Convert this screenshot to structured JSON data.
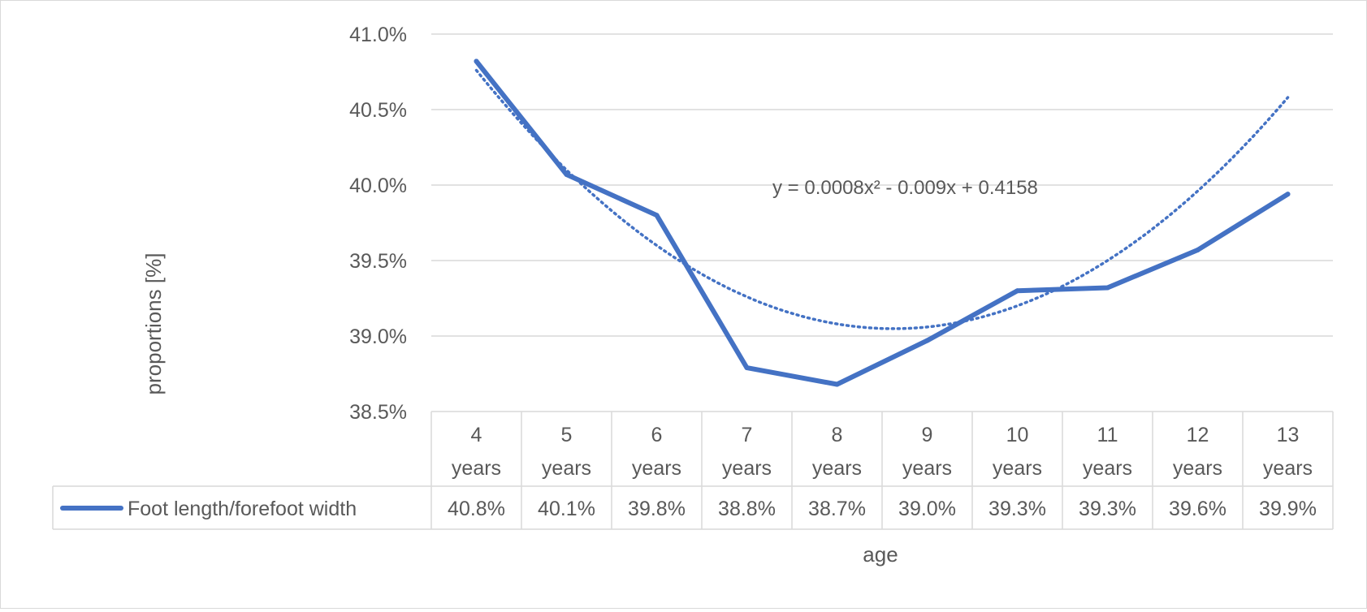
{
  "chart_data": {
    "type": "line",
    "title": "",
    "xlabel": "age",
    "ylabel": "proportions [%]",
    "ylim": [
      38.5,
      41.0
    ],
    "yticks": [
      "41.0%",
      "40.5%",
      "40.0%",
      "39.5%",
      "39.0%",
      "38.5%"
    ],
    "ytick_values": [
      41.0,
      40.5,
      40.0,
      39.5,
      39.0,
      38.5
    ],
    "categories": [
      {
        "num": "4",
        "unit": "years"
      },
      {
        "num": "5",
        "unit": "years"
      },
      {
        "num": "6",
        "unit": "years"
      },
      {
        "num": "7",
        "unit": "years"
      },
      {
        "num": "8",
        "unit": "years"
      },
      {
        "num": "9",
        "unit": "years"
      },
      {
        "num": "10",
        "unit": "years"
      },
      {
        "num": "11",
        "unit": "years"
      },
      {
        "num": "12",
        "unit": "years"
      },
      {
        "num": "13",
        "unit": "years"
      }
    ],
    "series": [
      {
        "name": "Foot length/forefoot width",
        "values": [
          40.82,
          40.07,
          39.8,
          38.79,
          38.68,
          38.97,
          39.3,
          39.32,
          39.57,
          39.94
        ],
        "table_labels": [
          "40.8%",
          "40.1%",
          "39.8%",
          "38.8%",
          "38.7%",
          "39.0%",
          "39.3%",
          "39.3%",
          "39.6%",
          "39.9%"
        ],
        "color": "#4472c4"
      }
    ],
    "trendline": {
      "type": "polynomial-2",
      "style": "dotted",
      "color": "#4472c4",
      "equation": "y = 0.0008x² - 0.009x + 0.4158",
      "coefficients": {
        "a": 0.0008,
        "b": -0.009,
        "c": 0.4158
      }
    },
    "grid": true,
    "legend": "data-table-left",
    "gridline_color": "#d9d9d9",
    "text_color": "#595959"
  }
}
